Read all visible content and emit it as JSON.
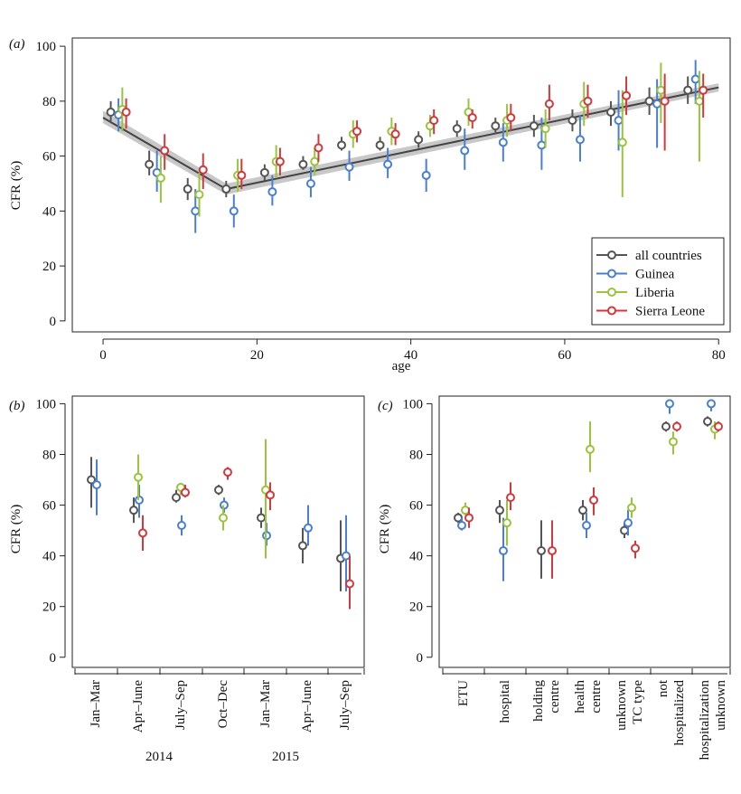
{
  "colors": {
    "all countries": "#555555",
    "Guinea": "#4a7fd0",
    "Liberia": "#9ac43c",
    "Sierra Leone": "#d0393d",
    "ribbon": "#b5b5b5",
    "fit": "#444444"
  },
  "chart_data": [
    {
      "panel_label": "(a)",
      "type": "scatter",
      "xlabel": "age",
      "ylabel": "CFR (%)",
      "xlim": [
        -4,
        81.5
      ],
      "ylim": [
        -4,
        103
      ],
      "xticks": [
        "0",
        "20",
        "40",
        "60",
        "80"
      ],
      "xtick_values": [
        0,
        20,
        40,
        60,
        80
      ],
      "yticks": [
        "0",
        "20",
        "40",
        "60",
        "80",
        "100"
      ],
      "ytick_values": [
        0,
        20,
        40,
        60,
        80,
        100
      ],
      "legend": {
        "position": "bottom-right",
        "entries": [
          "all countries",
          "Guinea",
          "Liberia",
          "Sierra Leone"
        ]
      },
      "fit_line": {
        "x": [
          0,
          16,
          80
        ],
        "y": [
          74,
          48,
          85
        ],
        "ribbon_low": [
          72,
          46,
          83.5
        ],
        "ribbon_high": [
          76.5,
          50,
          86.5
        ]
      },
      "series": [
        {
          "name": "all countries",
          "x": [
            1,
            6,
            11,
            16,
            21,
            26,
            31,
            36,
            41,
            46,
            51,
            56,
            61,
            66,
            71,
            76
          ],
          "y": [
            76,
            57,
            48,
            48,
            54,
            57,
            64,
            64,
            66,
            70,
            71,
            71,
            73,
            76,
            80,
            84
          ],
          "lo": [
            72,
            53,
            44,
            45,
            51,
            55,
            62,
            62,
            63,
            67,
            68,
            67,
            69,
            71,
            75,
            79
          ],
          "hi": [
            80,
            62,
            52,
            51,
            57,
            60,
            67,
            67,
            69,
            73,
            74,
            75,
            77,
            80,
            85,
            89
          ]
        },
        {
          "name": "Guinea",
          "x": [
            2,
            7,
            12,
            17,
            22,
            27,
            32,
            37,
            42,
            47,
            52,
            57,
            62,
            67,
            72,
            77
          ],
          "y": [
            75,
            54,
            40,
            40,
            47,
            50,
            56,
            57,
            53,
            62,
            65,
            64,
            66,
            73,
            79,
            88
          ],
          "lo": [
            69,
            47,
            32,
            34,
            42,
            45,
            51,
            52,
            47,
            55,
            58,
            55,
            58,
            62,
            63,
            79
          ],
          "hi": [
            81,
            62,
            48,
            46,
            53,
            56,
            62,
            63,
            59,
            70,
            72,
            74,
            75,
            84,
            88,
            95
          ]
        },
        {
          "name": "Liberia",
          "x": [
            2.5,
            7.5,
            12.5,
            17.5,
            22.5,
            27.5,
            32.5,
            37.5,
            42.5,
            47.5,
            52.5,
            57.5,
            62.5,
            67.5,
            72.5,
            77.5
          ],
          "y": [
            77,
            52,
            46,
            53,
            58,
            58,
            68,
            69,
            71,
            76,
            73,
            70,
            79,
            65,
            84,
            80
          ],
          "lo": [
            69,
            43,
            38,
            47,
            52,
            53,
            63,
            64,
            67,
            71,
            67,
            63,
            71,
            45,
            72,
            58
          ],
          "hi": [
            85,
            60,
            54,
            59,
            64,
            63,
            73,
            74,
            75,
            81,
            79,
            77,
            87,
            84,
            94,
            91
          ]
        },
        {
          "name": "Sierra Leone",
          "x": [
            3,
            8,
            13,
            18,
            23,
            28,
            33,
            38,
            43,
            48,
            53,
            58,
            63,
            68,
            73,
            78
          ],
          "y": [
            76,
            62,
            55,
            53,
            58,
            63,
            69,
            68,
            73,
            74,
            74,
            79,
            80,
            82,
            80,
            84
          ],
          "lo": [
            70,
            55,
            48,
            48,
            53,
            58,
            65,
            64,
            68,
            70,
            69,
            73,
            74,
            75,
            62,
            74
          ],
          "hi": [
            81,
            68,
            61,
            59,
            63,
            68,
            73,
            72,
            77,
            77,
            79,
            86,
            86,
            89,
            90,
            90
          ]
        }
      ]
    },
    {
      "panel_label": "(b)",
      "type": "scatter",
      "ylabel": "CFR (%)",
      "ylim": [
        -4,
        103
      ],
      "yticks": [
        "0",
        "20",
        "40",
        "60",
        "80",
        "100"
      ],
      "ytick_values": [
        0,
        20,
        40,
        60,
        80,
        100
      ],
      "categories": [
        "Jan–Mar",
        "Apr–June",
        "July–Sep",
        "Oct–Dec",
        "Jan–Mar",
        "Apr–June",
        "July–Sep"
      ],
      "year_labels": [
        {
          "label": "2014",
          "center_index": 2
        },
        {
          "label": "2015",
          "center_index": 5
        }
      ],
      "series": [
        {
          "name": "all countries",
          "y": [
            70,
            58,
            63,
            66,
            55,
            44,
            39
          ],
          "lo": [
            59,
            53,
            61,
            64,
            51,
            37,
            26
          ],
          "hi": [
            79,
            63,
            66,
            68,
            59,
            51,
            54
          ]
        },
        {
          "name": "Guinea",
          "y": [
            68,
            62,
            52,
            60,
            48,
            51,
            40
          ],
          "lo": [
            56,
            55,
            48,
            57,
            44,
            44,
            26
          ],
          "hi": [
            78,
            68,
            56,
            63,
            53,
            60,
            56
          ]
        },
        {
          "name": "Liberia",
          "y": [
            null,
            71,
            67,
            55,
            66,
            null,
            null
          ],
          "lo": [
            null,
            62,
            64,
            50,
            39,
            null,
            null
          ],
          "hi": [
            null,
            80,
            68,
            60,
            86,
            null,
            null
          ]
        },
        {
          "name": "Sierra Leone",
          "y": [
            null,
            49,
            65,
            73,
            64,
            null,
            29
          ],
          "lo": [
            null,
            42,
            63,
            70,
            58,
            null,
            19
          ],
          "hi": [
            null,
            56,
            68,
            75,
            69,
            null,
            40
          ]
        }
      ]
    },
    {
      "panel_label": "(c)",
      "type": "scatter",
      "ylabel": "CFR (%)",
      "ylim": [
        -4,
        103
      ],
      "yticks": [
        "0",
        "20",
        "40",
        "60",
        "80",
        "100"
      ],
      "ytick_values": [
        0,
        20,
        40,
        60,
        80,
        100
      ],
      "categories": [
        "ETU",
        "hospital",
        "holding centre",
        "health centre",
        "unknown TC type",
        "not hospitalized",
        "hospitalization unknown"
      ],
      "category_lines": [
        [
          "ETU"
        ],
        [
          "hospital"
        ],
        [
          "holding",
          "centre"
        ],
        [
          "health",
          "centre"
        ],
        [
          "unknown",
          "TC type"
        ],
        [
          "not",
          "hospitalized"
        ],
        [
          "hospitalization",
          "unknown"
        ]
      ],
      "series": [
        {
          "name": "all countries",
          "y": [
            55,
            58,
            42,
            58,
            50,
            91,
            93
          ],
          "lo": [
            53,
            53,
            31,
            54,
            47,
            89,
            91
          ],
          "hi": [
            57,
            62,
            54,
            62,
            53,
            93,
            95
          ]
        },
        {
          "name": "Guinea",
          "y": [
            52,
            42,
            null,
            52,
            53,
            100,
            100
          ],
          "lo": [
            50,
            30,
            null,
            47,
            48,
            96,
            97
          ],
          "hi": [
            55,
            55,
            null,
            57,
            58,
            100,
            100
          ]
        },
        {
          "name": "Liberia",
          "y": [
            58,
            53,
            null,
            82,
            59,
            85,
            90
          ],
          "lo": [
            56,
            44,
            null,
            73,
            55,
            80,
            86
          ],
          "hi": [
            61,
            62,
            null,
            93,
            63,
            89,
            93
          ]
        },
        {
          "name": "Sierra Leone",
          "y": [
            55,
            63,
            42,
            62,
            43,
            91,
            91
          ],
          "lo": [
            51,
            58,
            31,
            56,
            39,
            89,
            89
          ],
          "hi": [
            59,
            69,
            54,
            67,
            46,
            93,
            93
          ]
        }
      ]
    }
  ]
}
